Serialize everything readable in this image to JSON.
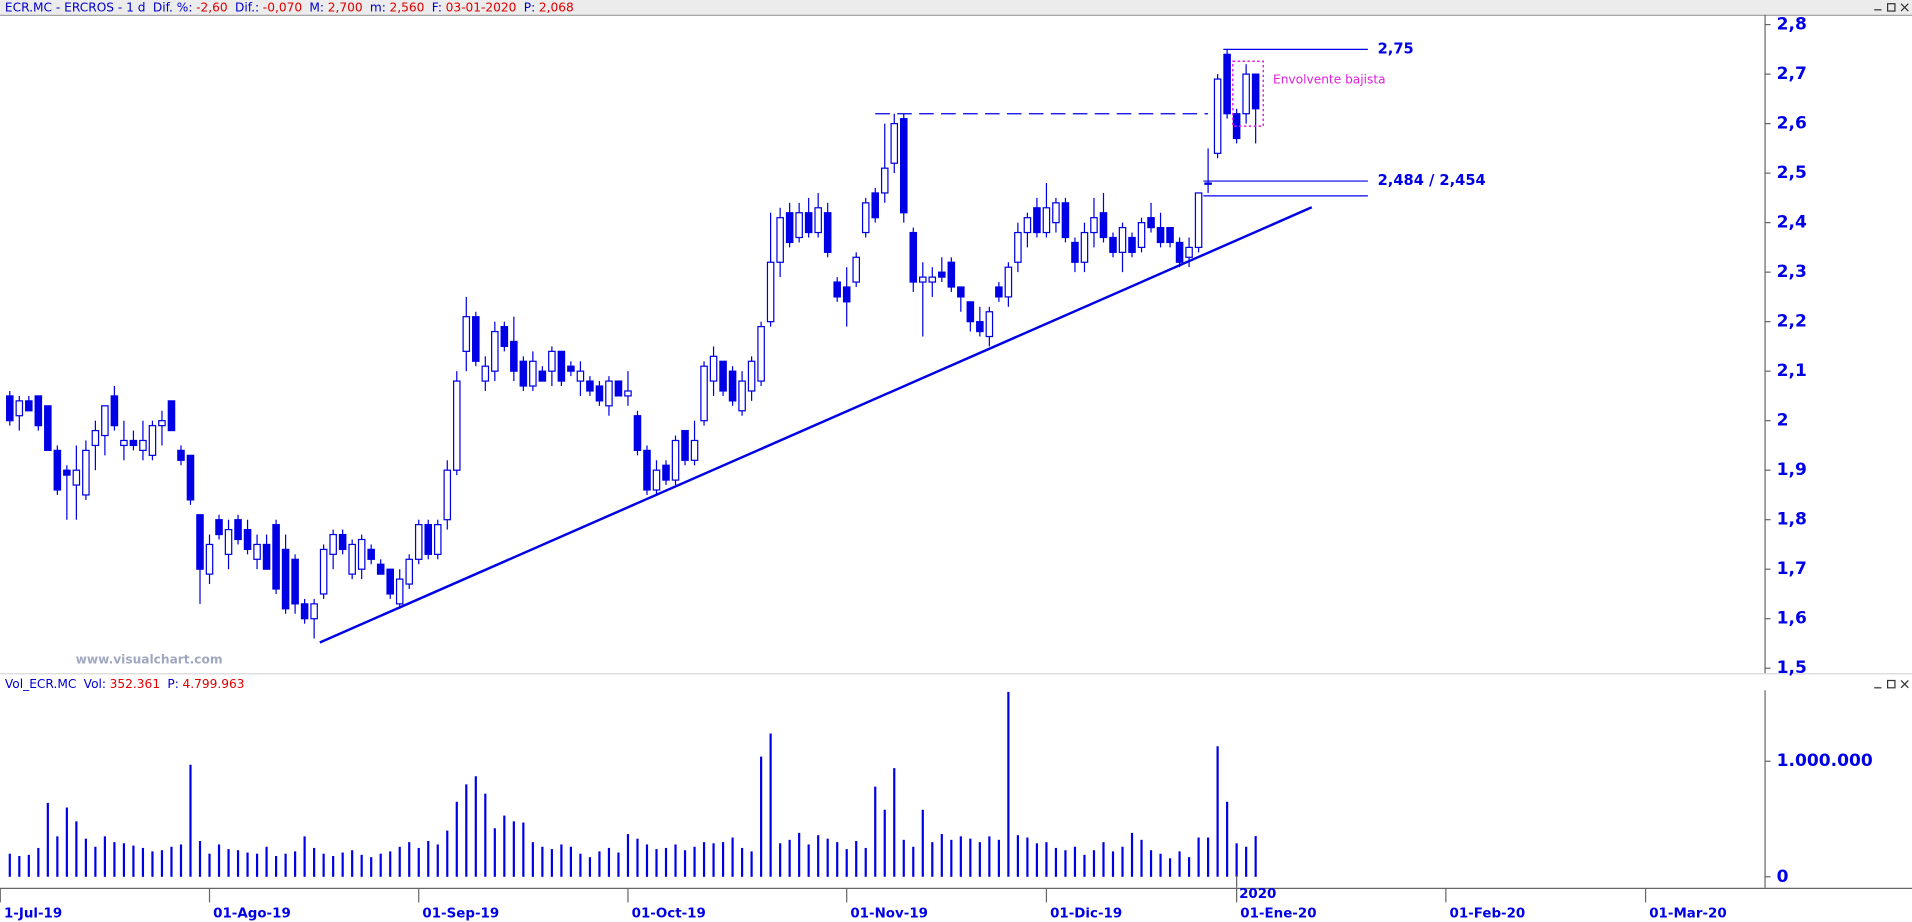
{
  "chart_data": [
    {
      "type": "candlestick",
      "title": "ECR.MC - ERCROS - 1 d",
      "stats": [
        {
          "label": "Dif. %:",
          "value": "-2,60"
        },
        {
          "label": "Dif.:",
          "value": "-0,070"
        },
        {
          "label": "M:",
          "value": "2,700"
        },
        {
          "label": "m:",
          "value": "2,560"
        },
        {
          "label": "F:",
          "value": "03-01-2020"
        },
        {
          "label": "P:",
          "value": "2,068"
        }
      ],
      "watermark": "www.visualchart.com",
      "color": "#0000e6",
      "open": [
        2.05,
        2.01,
        2.04,
        2.05,
        2.03,
        1.94,
        1.9,
        1.87,
        1.85,
        1.95,
        1.97,
        2.05,
        1.95,
        1.96,
        1.94,
        1.93,
        1.99,
        2.04,
        1.94,
        1.93,
        1.81,
        1.69,
        1.8,
        1.73,
        1.8,
        1.78,
        1.72,
        1.75,
        1.79,
        1.74,
        1.72,
        1.63,
        1.6,
        1.65,
        1.73,
        1.77,
        1.69,
        1.7,
        1.74,
        1.71,
        1.7,
        1.63,
        1.67,
        1.72,
        1.79,
        1.73,
        1.8,
        1.9,
        2.14,
        2.21,
        2.08,
        2.1,
        2.19,
        2.16,
        2.12,
        2.07,
        2.1,
        2.1,
        2.14,
        2.11,
        2.08,
        2.08,
        2.07,
        2.03,
        2.08,
        2.05,
        2.01,
        1.94,
        1.86,
        1.91,
        1.88,
        1.98,
        1.92,
        2.0,
        2.08,
        2.12,
        2.1,
        2.02,
        2.06,
        2.08,
        2.2,
        2.32,
        2.42,
        2.37,
        2.42,
        2.38,
        2.42,
        2.28,
        2.27,
        2.28,
        2.38,
        2.46,
        2.46,
        2.52,
        2.61,
        2.38,
        2.28,
        2.28,
        2.3,
        2.32,
        2.27,
        2.24,
        2.2,
        2.17,
        2.27,
        2.25,
        2.32,
        2.38,
        2.43,
        2.38,
        2.4,
        2.44,
        2.36,
        2.32,
        2.38,
        2.42,
        2.37,
        2.34,
        2.37,
        2.35,
        2.41,
        2.39,
        2.39,
        2.36,
        2.33,
        2.35,
        2.48,
        2.54,
        2.74,
        2.62,
        2.62,
        2.7
      ],
      "high": [
        2.06,
        2.05,
        2.05,
        2.05,
        2.03,
        1.95,
        1.91,
        1.95,
        1.96,
        2.0,
        2.03,
        2.07,
        2.0,
        1.98,
        2.0,
        2.0,
        2.02,
        2.04,
        1.95,
        1.93,
        1.81,
        1.77,
        1.81,
        1.8,
        1.81,
        1.8,
        1.77,
        1.77,
        1.8,
        1.77,
        1.73,
        1.64,
        1.64,
        1.75,
        1.78,
        1.78,
        1.76,
        1.77,
        1.75,
        1.72,
        1.7,
        1.7,
        1.73,
        1.8,
        1.8,
        1.8,
        1.92,
        2.1,
        2.25,
        2.22,
        2.13,
        2.2,
        2.2,
        2.21,
        2.13,
        2.14,
        2.11,
        2.15,
        2.14,
        2.12,
        2.12,
        2.09,
        2.08,
        2.09,
        2.08,
        2.1,
        2.02,
        1.95,
        1.92,
        1.92,
        1.97,
        1.98,
        2.0,
        2.12,
        2.15,
        2.12,
        2.11,
        2.1,
        2.13,
        2.2,
        2.42,
        2.43,
        2.44,
        2.44,
        2.45,
        2.46,
        2.44,
        2.29,
        2.31,
        2.34,
        2.45,
        2.47,
        2.6,
        2.62,
        2.62,
        2.39,
        2.32,
        2.31,
        2.33,
        2.33,
        2.27,
        2.24,
        2.23,
        2.23,
        2.28,
        2.32,
        2.4,
        2.42,
        2.45,
        2.48,
        2.45,
        2.45,
        2.37,
        2.4,
        2.45,
        2.46,
        2.38,
        2.4,
        2.38,
        2.41,
        2.44,
        2.42,
        2.39,
        2.37,
        2.37,
        2.46,
        2.55,
        2.7,
        2.75,
        2.63,
        2.72,
        2.7
      ],
      "low": [
        1.99,
        1.98,
        2.02,
        1.98,
        1.94,
        1.85,
        1.8,
        1.8,
        1.84,
        1.9,
        1.93,
        1.98,
        1.92,
        1.94,
        1.92,
        1.92,
        1.95,
        1.98,
        1.91,
        1.83,
        1.63,
        1.67,
        1.76,
        1.7,
        1.75,
        1.73,
        1.7,
        1.7,
        1.65,
        1.61,
        1.61,
        1.59,
        1.56,
        1.64,
        1.7,
        1.73,
        1.68,
        1.68,
        1.71,
        1.69,
        1.64,
        1.62,
        1.66,
        1.71,
        1.72,
        1.72,
        1.78,
        1.89,
        2.1,
        2.11,
        2.06,
        2.08,
        2.14,
        2.08,
        2.06,
        2.06,
        2.08,
        2.07,
        2.07,
        2.09,
        2.05,
        2.05,
        2.03,
        2.01,
        2.05,
        2.03,
        1.93,
        1.85,
        1.85,
        1.87,
        1.87,
        1.91,
        1.91,
        1.99,
        2.05,
        2.05,
        2.03,
        2.01,
        2.04,
        2.07,
        2.19,
        2.29,
        2.35,
        2.36,
        2.37,
        2.37,
        2.33,
        2.24,
        2.19,
        2.27,
        2.37,
        2.4,
        2.44,
        2.5,
        2.4,
        2.26,
        2.17,
        2.25,
        2.28,
        2.26,
        2.22,
        2.18,
        2.17,
        2.15,
        2.24,
        2.23,
        2.3,
        2.35,
        2.37,
        2.37,
        2.38,
        2.36,
        2.3,
        2.3,
        2.35,
        2.36,
        2.33,
        2.3,
        2.33,
        2.34,
        2.38,
        2.35,
        2.35,
        2.31,
        2.31,
        2.34,
        2.46,
        2.53,
        2.61,
        2.56,
        2.6,
        2.56
      ],
      "close": [
        2.0,
        2.04,
        2.02,
        1.99,
        1.94,
        1.86,
        1.89,
        1.9,
        1.94,
        1.98,
        2.03,
        1.99,
        1.96,
        1.95,
        1.96,
        1.99,
        2.0,
        1.98,
        1.92,
        1.84,
        1.7,
        1.75,
        1.77,
        1.78,
        1.76,
        1.74,
        1.75,
        1.7,
        1.66,
        1.62,
        1.63,
        1.6,
        1.63,
        1.74,
        1.77,
        1.74,
        1.75,
        1.76,
        1.72,
        1.69,
        1.65,
        1.68,
        1.72,
        1.79,
        1.73,
        1.79,
        1.9,
        2.08,
        2.21,
        2.12,
        2.11,
        2.18,
        2.15,
        2.1,
        2.07,
        2.12,
        2.08,
        2.14,
        2.08,
        2.1,
        2.1,
        2.06,
        2.04,
        2.08,
        2.05,
        2.06,
        1.94,
        1.86,
        1.9,
        1.88,
        1.96,
        1.92,
        1.96,
        2.11,
        2.13,
        2.06,
        2.04,
        2.08,
        2.12,
        2.19,
        2.32,
        2.41,
        2.36,
        2.42,
        2.38,
        2.43,
        2.34,
        2.25,
        2.24,
        2.33,
        2.44,
        2.41,
        2.51,
        2.6,
        2.42,
        2.28,
        2.29,
        2.29,
        2.29,
        2.27,
        2.25,
        2.2,
        2.18,
        2.22,
        2.25,
        2.31,
        2.38,
        2.41,
        2.38,
        2.43,
        2.44,
        2.37,
        2.32,
        2.38,
        2.41,
        2.37,
        2.34,
        2.39,
        2.34,
        2.4,
        2.39,
        2.36,
        2.36,
        2.32,
        2.35,
        2.46,
        2.48,
        2.69,
        2.62,
        2.57,
        2.7,
        2.63
      ],
      "xlim": [
        -1.03,
        184.5
      ],
      "ylim": [
        1.49,
        2.82
      ],
      "yticks": [
        {
          "value": 1.5,
          "label": "1,5"
        },
        {
          "value": 1.6,
          "label": "1,6"
        },
        {
          "value": 1.7,
          "label": "1,7"
        },
        {
          "value": 1.8,
          "label": "1,8"
        },
        {
          "value": 1.9,
          "label": "1,9"
        },
        2,
        {
          "value": 2.1,
          "label": "2,1"
        },
        {
          "value": 2.2,
          "label": "2,2"
        },
        {
          "value": 2.3,
          "label": "2,3"
        },
        {
          "value": 2.4,
          "label": "2,4"
        },
        {
          "value": 2.5,
          "label": "2,5"
        },
        {
          "value": 2.6,
          "label": "2,6"
        },
        {
          "value": 2.7,
          "label": "2,7"
        },
        {
          "value": 2.8,
          "label": "2,8"
        }
      ],
      "trendline": {
        "x": [
          32.6,
          136.9
        ],
        "y": [
          1.552,
          2.431
        ]
      },
      "resistance": {
        "x": [
          91,
          126
        ],
        "y": 2.62
      },
      "levels": [
        {
          "values": [
            2.75
          ],
          "label": "2,75",
          "x": [
            127.6,
            142.8
          ]
        },
        {
          "values": [
            2.484,
            2.454
          ],
          "label": "2,484 / 2,454",
          "x": [
            125.5,
            142.8
          ]
        }
      ],
      "pattern": {
        "label": "Envolvente bajista",
        "x": [
          128.6,
          131.8
        ],
        "y": [
          2.595,
          2.726
        ],
        "color": "#e020e0"
      }
    },
    {
      "type": "volume",
      "title": "Vol_ECR.MC",
      "stats": [
        {
          "label": "Vol:",
          "value": "352.361"
        },
        {
          "label": "P:",
          "value": "4.799.963"
        }
      ],
      "color": "#0000e6",
      "values": [
        200000,
        180000,
        190000,
        250000,
        640000,
        350000,
        600000,
        480000,
        330000,
        260000,
        350000,
        300000,
        290000,
        270000,
        250000,
        220000,
        230000,
        260000,
        280000,
        970000,
        310000,
        200000,
        280000,
        240000,
        230000,
        210000,
        200000,
        260000,
        180000,
        200000,
        220000,
        350000,
        250000,
        200000,
        180000,
        210000,
        230000,
        190000,
        170000,
        200000,
        220000,
        260000,
        300000,
        250000,
        310000,
        280000,
        400000,
        650000,
        800000,
        870000,
        720000,
        420000,
        530000,
        480000,
        470000,
        300000,
        260000,
        240000,
        280000,
        260000,
        200000,
        170000,
        220000,
        250000,
        210000,
        370000,
        330000,
        280000,
        240000,
        250000,
        280000,
        230000,
        260000,
        300000,
        290000,
        300000,
        340000,
        250000,
        220000,
        1040000,
        1240000,
        290000,
        320000,
        380000,
        280000,
        360000,
        330000,
        300000,
        240000,
        310000,
        250000,
        780000,
        580000,
        940000,
        320000,
        260000,
        580000,
        300000,
        370000,
        320000,
        350000,
        330000,
        300000,
        350000,
        320000,
        1600000,
        360000,
        340000,
        290000,
        300000,
        250000,
        230000,
        260000,
        190000,
        230000,
        300000,
        220000,
        260000,
        380000,
        320000,
        230000,
        200000,
        160000,
        220000,
        170000,
        340000,
        340000,
        1130000,
        650000,
        290000,
        260000,
        352361
      ],
      "xlim": [
        -1.03,
        184.5
      ],
      "ylim": [
        -95000,
        1720000
      ],
      "yticks": [
        0,
        {
          "value": 1000000,
          "label": "1.000.000"
        }
      ],
      "xticks": [
        {
          "value": -1,
          "label": "1-Jul-19"
        },
        {
          "value": 21,
          "label": "01-Ago-19"
        },
        {
          "value": 43,
          "label": "01-Sep-19"
        },
        {
          "value": 65,
          "label": "01-Oct-19"
        },
        {
          "value": 88,
          "label": "01-Nov-19"
        },
        {
          "value": 109,
          "label": "01-Dic-19"
        },
        {
          "value": 129,
          "label": "01-Ene-20"
        },
        {
          "value": 151,
          "label": "01-Feb-20"
        },
        {
          "value": 172,
          "label": "01-Mar-20"
        }
      ],
      "year_label": "2020"
    }
  ]
}
